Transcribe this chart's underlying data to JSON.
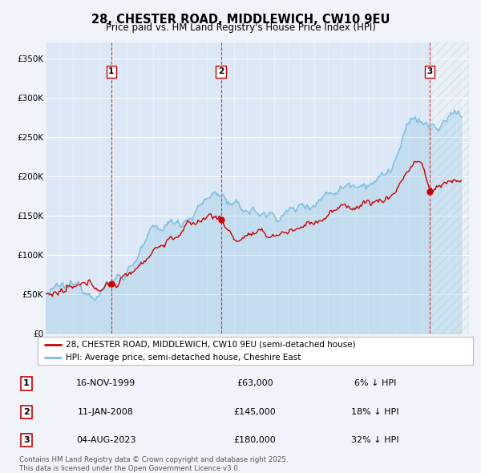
{
  "title": "28, CHESTER ROAD, MIDDLEWICH, CW10 9EU",
  "subtitle": "Price paid vs. HM Land Registry's House Price Index (HPI)",
  "ylim": [
    0,
    370000
  ],
  "yticks": [
    0,
    50000,
    100000,
    150000,
    200000,
    250000,
    300000,
    350000
  ],
  "ytick_labels": [
    "£0",
    "£50K",
    "£100K",
    "£150K",
    "£200K",
    "£250K",
    "£300K",
    "£350K"
  ],
  "xlim_start": 1995.0,
  "xlim_end": 2026.5,
  "sale_dates": [
    1999.88,
    2008.04,
    2023.59
  ],
  "sale_prices": [
    63000,
    145000,
    180000
  ],
  "sale_labels": [
    "1",
    "2",
    "3"
  ],
  "sale_info": [
    {
      "num": "1",
      "date": "16-NOV-1999",
      "price": "£63,000",
      "hpi": "6% ↓ HPI"
    },
    {
      "num": "2",
      "date": "11-JAN-2008",
      "price": "£145,000",
      "hpi": "18% ↓ HPI"
    },
    {
      "num": "3",
      "date": "04-AUG-2023",
      "price": "£180,000",
      "hpi": "32% ↓ HPI"
    }
  ],
  "hpi_color": "#7bbde0",
  "price_color": "#cc0000",
  "sale_marker_color": "#cc0000",
  "vline_color": "#cc0000",
  "legend_label_price": "28, CHESTER ROAD, MIDDLEWICH, CW10 9EU (semi-detached house)",
  "legend_label_hpi": "HPI: Average price, semi-detached house, Cheshire East",
  "footer": "Contains HM Land Registry data © Crown copyright and database right 2025.\nThis data is licensed under the Open Government Licence v3.0.",
  "background_color": "#f0f4fa",
  "plot_bg_color": "#dce8f5"
}
